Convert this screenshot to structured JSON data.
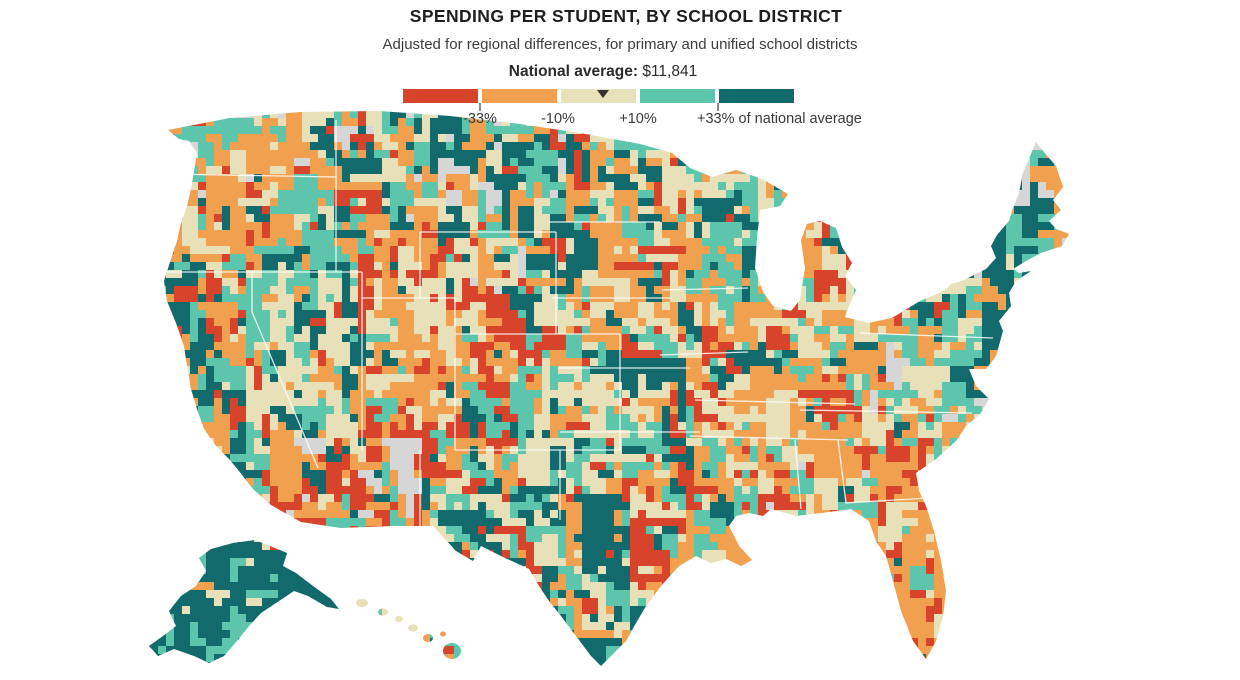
{
  "header": {
    "title": "SPENDING PER STUDENT, BY SCHOOL DISTRICT",
    "subtitle": "Adjusted for regional differences, for primary and unified school districts"
  },
  "legend": {
    "national_average_label": "National average:",
    "national_average_value": "$11,841",
    "marker_icon": "down-triangle-marker",
    "swatches": [
      {
        "color": "#d8432c",
        "meaning": "more than 33% below national average"
      },
      {
        "color": "#f0a04f",
        "meaning": "10% to 33% below national average"
      },
      {
        "color": "#e7e0b8",
        "meaning": "within 10% of national average"
      },
      {
        "color": "#5cc5ab",
        "meaning": "10% to 33% above national average"
      },
      {
        "color": "#136a6c",
        "meaning": "more than 33% above national average"
      }
    ],
    "tick_labels": [
      "-33%",
      "-10%",
      "+10%",
      "+33% of national average"
    ]
  },
  "chart_data": {
    "type": "heatmap",
    "subtype": "choropleth-map",
    "geography": "United States (contiguous states, Alaska, Hawaii) by school district",
    "title": "SPENDING PER STUDENT, BY SCHOOL DISTRICT",
    "national_average_usd": 11841,
    "scale_breaks_pct_of_national_average": [
      -33,
      -10,
      10,
      33
    ],
    "colors": {
      "below_33pct": "#d8432c",
      "below_10_to_33pct": "#f0a04f",
      "within_10pct": "#e7e0b8",
      "above_10_to_33pct": "#5cc5ab",
      "above_33pct": "#136a6c",
      "no_data": "#d6d6d6"
    },
    "legend_position": "top-center",
    "regional_pattern": [
      "New York state: almost uniformly more than 33% above average (dark teal)",
      "New Jersey, Connecticut, coastal Northeast: well above average (dark teal)",
      "Northern Maine: mostly no-data (gray)",
      "New England (VT/NH/MA/RI): mixed teal, cream and orange",
      "Pennsylvania: mix of cream, light teal and dark teal",
      "Utah, Arizona, southern Idaho, Colorado front range: many districts more than 33% below average (red)",
      "Pacific Northwest and California: mixed orange, teal and dark teal",
      "Nevada / Great Basin: mostly cream (near average)",
      "Montana, Wyoming, mountain districts: many more than 33% above average (dark teal)",
      "Midwest corn belt (IN/IL/OH/MI/MO): orange and cream with scattered red metros",
      "Southeast (FL/GA/SC/NC/TN/AL/MS/LA): predominantly 10-33% below average (orange) with red patches",
      "West and south Texas, New Mexico: mixed teal and dark teal (above average)",
      "Alaska: mostly more than 33% above average (dark teal)",
      "Hawaii: near national average (cream)"
    ]
  }
}
